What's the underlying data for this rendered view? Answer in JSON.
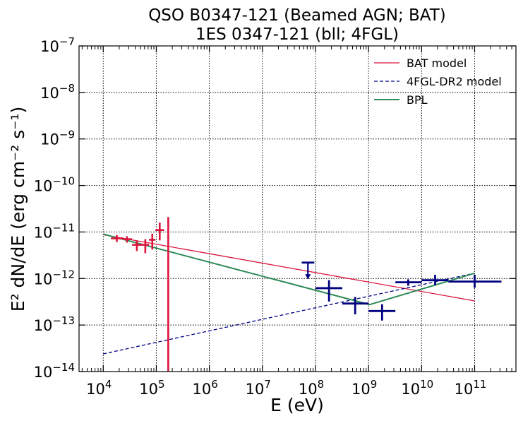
{
  "chart_data": {
    "type": "scatter",
    "title": [
      "QSO B0347-121 (Beamed AGN; BAT)",
      "1ES 0347-121 (bll; 4FGL)"
    ],
    "xlabel": "E (eV)",
    "ylabel": "E² dN/dE (erg cm⁻² s⁻¹)",
    "x_scale": "log",
    "y_scale": "log",
    "xlim": [
      3500.0,
      600000000000.0
    ],
    "ylim": [
      1e-14,
      1e-07
    ],
    "grid": true,
    "legend_position": "top-right",
    "x_ticks": [
      {
        "value": 10000.0,
        "base": "10",
        "exp": "4"
      },
      {
        "value": 100000.0,
        "base": "10",
        "exp": "5"
      },
      {
        "value": 1000000.0,
        "base": "10",
        "exp": "6"
      },
      {
        "value": 10000000.0,
        "base": "10",
        "exp": "7"
      },
      {
        "value": 100000000.0,
        "base": "10",
        "exp": "8"
      },
      {
        "value": 1000000000.0,
        "base": "10",
        "exp": "9"
      },
      {
        "value": 10000000000.0,
        "base": "10",
        "exp": "10"
      },
      {
        "value": 100000000000.0,
        "base": "10",
        "exp": "11"
      }
    ],
    "y_ticks": [
      {
        "value": 1e-14,
        "base": "10",
        "exp": "−14"
      },
      {
        "value": 1e-13,
        "base": "10",
        "exp": "−13"
      },
      {
        "value": 1e-12,
        "base": "10",
        "exp": "−12"
      },
      {
        "value": 1e-11,
        "base": "10",
        "exp": "−11"
      },
      {
        "value": 1e-10,
        "base": "10",
        "exp": "−10"
      },
      {
        "value": 1e-09,
        "base": "10",
        "exp": "−9"
      },
      {
        "value": 1e-08,
        "base": "10",
        "exp": "−8"
      },
      {
        "value": 1e-07,
        "base": "10",
        "exp": "−7"
      }
    ],
    "series": [
      {
        "name": "BAT model",
        "kind": "line",
        "color": "#dc143c",
        "style": "solid",
        "x": [
          10000.0,
          100000000000.0
        ],
        "y": [
          8.7e-12,
          3.3e-13
        ]
      },
      {
        "name": "4FGL-DR2 model",
        "kind": "line",
        "color": "#000080",
        "style": "dashed",
        "x": [
          10000.0,
          100000000000.0
        ],
        "y": [
          2.4e-14,
          1.3e-12
        ]
      },
      {
        "name": "BPL",
        "kind": "line",
        "color": "#2e8b57",
        "style": "solid",
        "x": [
          10000.0,
          1050000000.0,
          100000000000.0
        ],
        "y": [
          9e-12,
          2.75e-13,
          1.3e-12
        ]
      }
    ],
    "bat_points": {
      "color": "#dc143c",
      "points": [
        {
          "x": 18000.0,
          "xlo": 14000.0,
          "xhi": 24000.0,
          "y": 7.3e-12,
          "ylo": 6.1e-12,
          "yhi": 8.6e-12
        },
        {
          "x": 28000.0,
          "xlo": 24000.0,
          "xhi": 35000.0,
          "y": 7e-12,
          "ylo": 5.9e-12,
          "yhi": 8.1e-12
        },
        {
          "x": 43000.0,
          "xlo": 35000.0,
          "xhi": 51000.0,
          "y": 5.3e-12,
          "ylo": 3.9e-12,
          "yhi": 6.6e-12
        },
        {
          "x": 62000.0,
          "xlo": 51000.0,
          "xhi": 73000.0,
          "y": 5.3e-12,
          "ylo": 3.5e-12,
          "yhi": 7e-12
        },
        {
          "x": 84000.0,
          "xlo": 73000.0,
          "xhi": 96000.0,
          "y": 6.8e-12,
          "ylo": 4.2e-12,
          "yhi": 9.2e-12
        },
        {
          "x": 116000.0,
          "xlo": 96000.0,
          "xhi": 140000.0,
          "y": 1.1e-11,
          "ylo": 6.6e-12,
          "yhi": 1.6e-11
        },
        {
          "x": 168000.0,
          "xlo": 168000.0,
          "xhi": 168000.0,
          "y": 1e-14,
          "ylo": 1e-14,
          "yhi": 2.1e-11
        }
      ]
    },
    "fermi_points": {
      "color": "#000080",
      "points": [
        {
          "x": 180000000.0,
          "xlo": 100000000.0,
          "xhi": 320000000.0,
          "y": 6.2e-13,
          "ylo": 3.2e-13,
          "yhi": 9.2e-13
        },
        {
          "x": 560000000.0,
          "xlo": 320000000.0,
          "xhi": 1000000000.0,
          "y": 2.9e-13,
          "ylo": 1.7e-13,
          "yhi": 4e-13
        },
        {
          "x": 1800000000.0,
          "xlo": 1000000000.0,
          "xhi": 3200000000.0,
          "y": 2e-13,
          "ylo": 1.25e-13,
          "yhi": 2.8e-13
        },
        {
          "x": 5600000000.0,
          "xlo": 3200000000.0,
          "xhi": 10000000000.0,
          "y": 8.3e-13,
          "ylo": 7e-13,
          "yhi": 9.6e-13
        },
        {
          "x": 18000000000.0,
          "xlo": 10000000000.0,
          "xhi": 32000000000.0,
          "y": 9.2e-13,
          "ylo": 7.2e-13,
          "yhi": 1.2e-12
        },
        {
          "x": 100000000000.0,
          "xlo": 32000000000.0,
          "xhi": 320000000000.0,
          "y": 8.6e-13,
          "ylo": 6.3e-13,
          "yhi": 1.2e-12
        }
      ],
      "upper_limits": [
        {
          "x": 72000000.0,
          "xlo": 55000000.0,
          "xhi": 95000000.0,
          "y": 2.2e-12,
          "arrow_to": 1e-12
        }
      ]
    }
  }
}
